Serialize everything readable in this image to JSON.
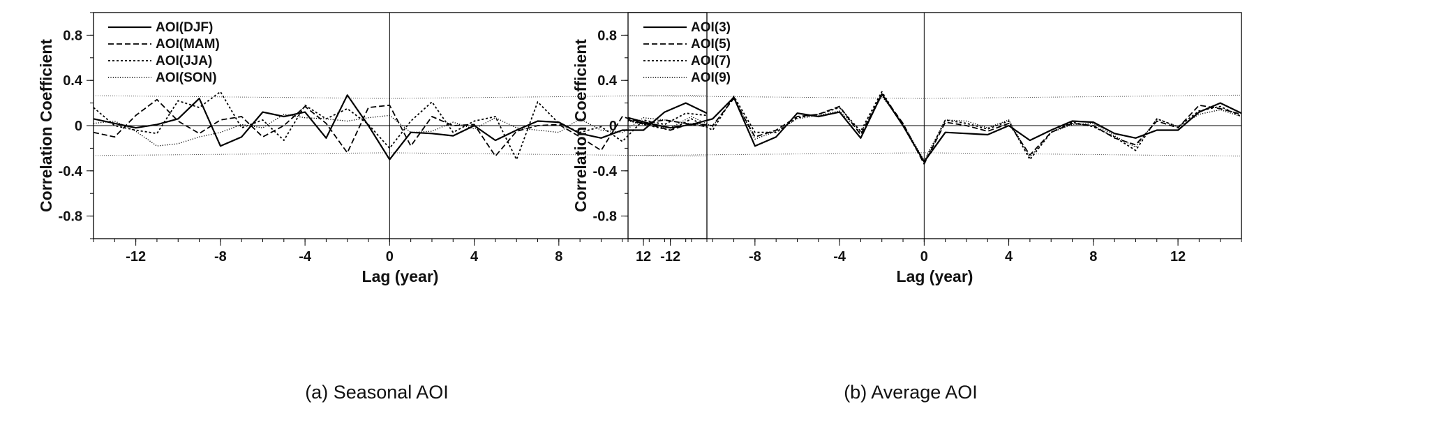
{
  "chart_data": [
    {
      "type": "line",
      "caption": "(a) Seasonal AOI",
      "xlabel": "Lag (year)",
      "ylabel": "Correlation Coefficient",
      "xlim": [
        -14,
        15
      ],
      "ylim": [
        -1,
        1
      ],
      "xticks": [
        -12,
        -8,
        -4,
        0,
        4,
        8,
        12
      ],
      "yticks": [
        0.8,
        0.4,
        0,
        -0.4,
        -0.8
      ],
      "yticklabels": [
        "0.8",
        "0.4",
        "0",
        "-0.4",
        "-0.8"
      ],
      "reference_lines": {
        "zero_y": 0,
        "zero_x": 0
      },
      "significance_bounds": {
        "upper": [
          0.265,
          0.24,
          0.27
        ],
        "lower": [
          -0.265,
          -0.24,
          -0.27
        ],
        "x": [
          -14,
          0,
          15
        ]
      },
      "legend_position": "top-left",
      "x": [
        -14,
        -13,
        -12,
        -11,
        -10,
        -9,
        -8,
        -7,
        -6,
        -5,
        -4,
        -3,
        -2,
        -1,
        0,
        1,
        2,
        3,
        4,
        5,
        6,
        7,
        8,
        9,
        10,
        11,
        12,
        13,
        14,
        15
      ],
      "series": [
        {
          "name": "AOI(DJF)",
          "dash": "solid",
          "values": [
            0.06,
            0.02,
            -0.02,
            0.01,
            0.06,
            0.24,
            -0.18,
            -0.1,
            0.12,
            0.08,
            0.12,
            -0.11,
            0.27,
            0.0,
            -0.3,
            -0.06,
            -0.07,
            -0.09,
            0.0,
            -0.13,
            -0.04,
            0.04,
            0.03,
            -0.07,
            -0.11,
            -0.04,
            -0.04,
            0.12,
            0.2,
            0.11
          ]
        },
        {
          "name": "AOI(MAM)",
          "dash": "dashed",
          "values": [
            -0.06,
            -0.1,
            0.09,
            0.23,
            0.04,
            -0.07,
            0.05,
            0.08,
            -0.1,
            0.0,
            0.17,
            0.02,
            -0.24,
            0.16,
            0.18,
            -0.18,
            0.08,
            0.0,
            0.01,
            -0.27,
            -0.05,
            0.0,
            0.01,
            -0.1,
            -0.22,
            0.08,
            0.02,
            0.05,
            0.02,
            -0.01
          ]
        },
        {
          "name": "AOI(JJA)",
          "dash": "dotted",
          "values": [
            0.16,
            0.0,
            -0.04,
            -0.07,
            0.22,
            0.16,
            0.3,
            -0.02,
            0.05,
            -0.13,
            0.18,
            0.06,
            0.15,
            0.01,
            -0.2,
            0.04,
            0.21,
            -0.06,
            0.04,
            0.08,
            -0.3,
            0.21,
            0.02,
            -0.06,
            -0.01,
            -0.14,
            0.05,
            0.01,
            0.11,
            0.09
          ]
        },
        {
          "name": "AOI(SON)",
          "dash": "fine-dotted",
          "values": [
            0.02,
            0.04,
            -0.05,
            -0.18,
            -0.16,
            -0.1,
            -0.06,
            0.01,
            -0.02,
            0.1,
            0.07,
            0.06,
            0.04,
            0.07,
            0.09,
            -0.06,
            -0.05,
            0.03,
            -0.03,
            0.07,
            -0.02,
            -0.04,
            -0.06,
            0.06,
            -0.04,
            -0.06,
            0.07,
            0.05,
            0.02,
            0.01
          ]
        }
      ]
    },
    {
      "type": "line",
      "caption": "(b) Average AOI",
      "xlabel": "Lag (year)",
      "ylabel": "Correlation Coefficient",
      "xlim": [
        -14,
        15
      ],
      "ylim": [
        -1,
        1
      ],
      "xticks": [
        -12,
        -8,
        -4,
        0,
        4,
        8,
        12
      ],
      "yticks": [
        0.8,
        0.4,
        0,
        -0.4,
        -0.8
      ],
      "yticklabels": [
        "0.8",
        "0.4",
        "0",
        "-0.4",
        "-0.8"
      ],
      "reference_lines": {
        "zero_y": 0,
        "zero_x": 0
      },
      "significance_bounds": {
        "upper": [
          0.265,
          0.24,
          0.27
        ],
        "lower": [
          -0.265,
          -0.24,
          -0.27
        ],
        "x": [
          -14,
          0,
          15
        ]
      },
      "legend_position": "top-left",
      "x": [
        -14,
        -13,
        -12,
        -11,
        -10,
        -9,
        -8,
        -7,
        -6,
        -5,
        -4,
        -3,
        -2,
        -1,
        0,
        1,
        2,
        3,
        4,
        5,
        6,
        7,
        8,
        9,
        10,
        11,
        12,
        13,
        14,
        15
      ],
      "series": [
        {
          "name": "AOI(3)",
          "dash": "solid",
          "values": [
            0.07,
            0.02,
            -0.02,
            0.01,
            0.06,
            0.25,
            -0.18,
            -0.1,
            0.11,
            0.08,
            0.12,
            -0.11,
            0.28,
            0.0,
            -0.32,
            -0.06,
            -0.07,
            -0.08,
            0.0,
            -0.13,
            -0.04,
            0.04,
            0.03,
            -0.07,
            -0.11,
            -0.04,
            -0.04,
            0.12,
            0.2,
            0.11
          ]
        },
        {
          "name": "AOI(5)",
          "dash": "dashed",
          "values": [
            0.05,
            0.01,
            -0.04,
            0.02,
            0.0,
            0.24,
            -0.1,
            -0.04,
            0.08,
            0.1,
            0.17,
            -0.08,
            0.28,
            0.02,
            -0.34,
            0.03,
            0.0,
            -0.05,
            0.02,
            -0.26,
            -0.06,
            0.02,
            0.0,
            -0.11,
            -0.17,
            0.04,
            -0.02,
            0.18,
            0.15,
            0.1
          ]
        },
        {
          "name": "AOI(7)",
          "dash": "dotted",
          "values": [
            0.05,
            0.0,
            -0.04,
            0.06,
            -0.04,
            0.26,
            -0.06,
            -0.06,
            0.07,
            0.1,
            0.16,
            -0.05,
            0.3,
            0.0,
            -0.33,
            0.05,
            0.02,
            -0.03,
            0.04,
            -0.3,
            -0.06,
            0.03,
            -0.01,
            -0.1,
            -0.22,
            0.06,
            -0.01,
            0.13,
            0.17,
            0.08
          ]
        },
        {
          "name": "AOI(9)",
          "dash": "fine-dotted",
          "values": [
            0.04,
            0.0,
            -0.02,
            0.08,
            -0.01,
            0.25,
            -0.12,
            -0.05,
            0.06,
            0.09,
            0.13,
            -0.06,
            0.26,
            0.02,
            -0.31,
            0.05,
            0.04,
            -0.02,
            0.05,
            -0.28,
            -0.06,
            0.01,
            0.02,
            -0.09,
            -0.19,
            0.06,
            -0.01,
            0.1,
            0.14,
            0.08
          ]
        }
      ]
    }
  ]
}
